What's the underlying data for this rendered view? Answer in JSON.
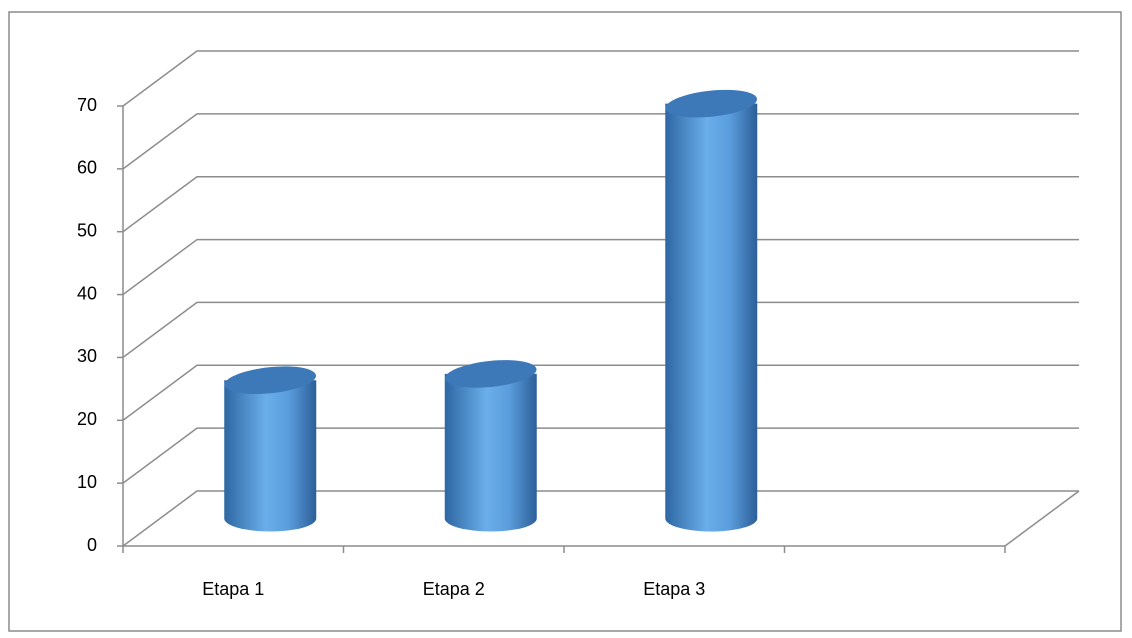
{
  "chart_data": {
    "type": "bar",
    "categories": [
      "Etapa 1",
      "Etapa 2",
      "Etapa 3",
      null
    ],
    "values": [
      22,
      23,
      66,
      null
    ],
    "color": "#5b9bd5",
    "ylim": [
      0,
      70
    ],
    "yticks": [
      0,
      10,
      20,
      30,
      40,
      50,
      60,
      70
    ],
    "grid": true
  }
}
